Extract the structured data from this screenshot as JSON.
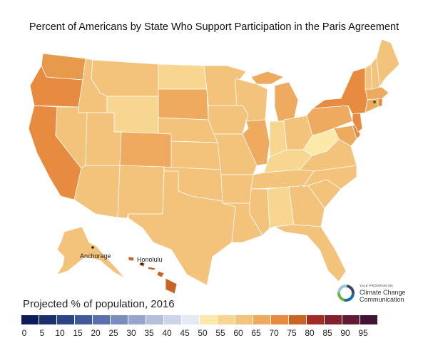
{
  "title": "Percent of Americans by State Who Support Participation in the Paris Agreement",
  "legend": {
    "title": "Projected % of population, 2016",
    "ticks": [
      "0",
      "5",
      "10",
      "15",
      "20",
      "25",
      "30",
      "35",
      "40",
      "45",
      "50",
      "55",
      "60",
      "65",
      "70",
      "75",
      "80",
      "85",
      "90",
      "95"
    ],
    "colors": [
      "#0e1d5a",
      "#1b2e6e",
      "#2c4585",
      "#41589a",
      "#5a70ad",
      "#7a8cc0",
      "#98a6cf",
      "#b3bfdc",
      "#ccd5e9",
      "#e4e9f4",
      "#fbe9a9",
      "#f7d68f",
      "#f3c27b",
      "#eeaa5f",
      "#e68b3f",
      "#c96424",
      "#a32a25",
      "#82202d",
      "#611c34",
      "#421436"
    ]
  },
  "cities": [
    "Anchorage",
    "Honolulu"
  ],
  "logo": {
    "program": "YALE PROGRAM ON",
    "line1": "Climate Change",
    "line2": "Communication"
  },
  "states": {
    "WA": "#e89a4c",
    "OR": "#e68b3f",
    "CA": "#e68b3f",
    "ID": "#f3c27b",
    "NV": "#f3c27b",
    "MT": "#f3c27b",
    "WY": "#f7d68f",
    "UT": "#f3c27b",
    "AZ": "#f3c27b",
    "CO": "#eeaa5f",
    "NM": "#f3c27b",
    "ND": "#f7d68f",
    "SD": "#eeaa5f",
    "NE": "#f3c27b",
    "KS": "#f3c27b",
    "OK": "#f3c27b",
    "TX": "#f3c27b",
    "MN": "#f3c27b",
    "IA": "#f3c27b",
    "MO": "#f3c27b",
    "AR": "#f3c27b",
    "LA": "#f3c27b",
    "WI": "#f3c27b",
    "IL": "#eeaa5f",
    "MI": "#eeaa5f",
    "IN": "#f7d68f",
    "OH": "#f3c27b",
    "KY": "#f7d68f",
    "TN": "#f3c27b",
    "MS": "#f3c27b",
    "AL": "#f7d68f",
    "GA": "#f3c27b",
    "FL": "#f3c27b",
    "SC": "#f3c27b",
    "NC": "#f3c27b",
    "VA": "#f3c27b",
    "WV": "#fbe9a9",
    "MD": "#eeaa5f",
    "DE": "#e68b3f",
    "PA": "#eeaa5f",
    "NJ": "#e68b3f",
    "NY": "#e68b3f",
    "CT": "#eeaa5f",
    "RI": "#e68b3f",
    "MA": "#eeaa5f",
    "VT": "#f3c27b",
    "NH": "#f3c27b",
    "ME": "#f3c27b",
    "AK": "#f3c27b",
    "HI": "#c96424"
  }
}
